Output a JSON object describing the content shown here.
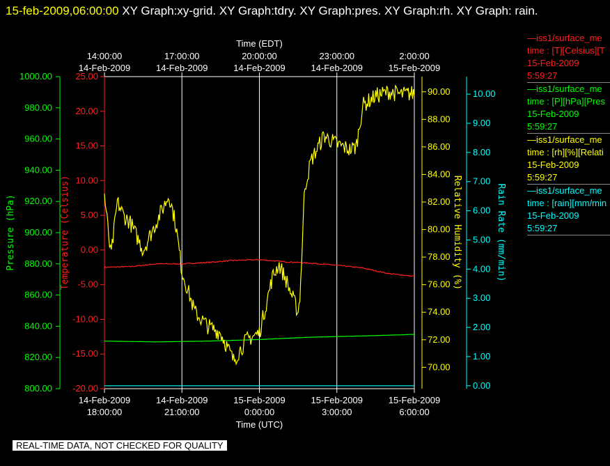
{
  "header": {
    "timestamp": "15-feb-2009,06:00:00",
    "title": "XY Graph:xy-grid.  XY Graph:tdry.  XY Graph:pres.  XY Graph:rh.  XY Graph: rain."
  },
  "footer": {
    "note": "REAL-TIME DATA, NOT CHECKED FOR QUALITY"
  },
  "legend": [
    {
      "series": "iss1/surface_me",
      "line1": "time : [T][Celsius][T",
      "line2": "15-Feb-2009",
      "line3": "5:59:27",
      "color": "#ff2020"
    },
    {
      "series": "iss1/surface_me",
      "line1": "time : [P][hPa][Pres",
      "line2": "15-Feb-2009",
      "line3": "5:59:27",
      "color": "#00ff00"
    },
    {
      "series": "iss1/surface_me",
      "line1": "time : [rh][%][Relati",
      "line2": "15-Feb-2009",
      "line3": "5:59:27",
      "color": "#ffff00"
    },
    {
      "series": "iss1/surface_me",
      "line1": "time : [rain][mm/min",
      "line2": "15-Feb-2009",
      "line3": "5:59:27",
      "color": "#00ffff"
    }
  ],
  "chart_data": {
    "type": "line",
    "grid": true,
    "top_axis": {
      "label": "Time (EDT)",
      "ticks": [
        {
          "time": "14:00:00",
          "date": "14-Feb-2009"
        },
        {
          "time": "17:00:00",
          "date": "14-Feb-2009"
        },
        {
          "time": "20:00:00",
          "date": "14-Feb-2009"
        },
        {
          "time": "23:00:00",
          "date": "14-Feb-2009"
        },
        {
          "time": "2:00:00",
          "date": "15-Feb-2009"
        }
      ]
    },
    "bottom_axis": {
      "label": "Time (UTC)",
      "xlim": [
        "2009-02-14T18:00:00Z",
        "2009-02-15T06:00:00Z"
      ],
      "ticks": [
        {
          "date": "14-Feb-2009",
          "time": "18:00:00"
        },
        {
          "date": "14-Feb-2009",
          "time": "21:00:00"
        },
        {
          "date": "15-Feb-2009",
          "time": "0:00:00"
        },
        {
          "date": "15-Feb-2009",
          "time": "3:00:00"
        },
        {
          "date": "15-Feb-2009",
          "time": "6:00:00"
        }
      ]
    },
    "axes": {
      "pressure": {
        "label": "Pressure (hPa)",
        "ylim": [
          800,
          1000
        ],
        "ticks": [
          "800.00",
          "820.00",
          "840.00",
          "860.00",
          "880.00",
          "900.00",
          "920.00",
          "940.00",
          "960.00",
          "980.00",
          "1000.00"
        ],
        "color": "#00ff00"
      },
      "temperature": {
        "label": "Temperature (Celsius)",
        "ylim": [
          -20,
          25
        ],
        "ticks": [
          "-20.00",
          "-15.00",
          "-10.00",
          "-5.00",
          "0.00",
          "5.00",
          "10.00",
          "15.00",
          "20.00",
          "25.00"
        ],
        "color": "#ff2020"
      },
      "humidity": {
        "label": "Relative Humidity (%)",
        "ylim": [
          68.45,
          91.1
        ],
        "ticks": [
          "70.00",
          "72.00",
          "74.00",
          "76.00",
          "78.00",
          "80.00",
          "82.00",
          "84.00",
          "86.00",
          "88.00",
          "90.00"
        ],
        "color": "#ffff00"
      },
      "rain": {
        "label": "Rain Rate (mm/min)",
        "ylim": [
          -0.1,
          10.6
        ],
        "ticks": [
          "0.00",
          "1.00",
          "2.00",
          "3.00",
          "4.00",
          "5.00",
          "6.00",
          "7.00",
          "8.00",
          "9.00",
          "10.00"
        ],
        "color": "#00ffff"
      }
    },
    "series": [
      {
        "name": "iss1/surface_me temperature",
        "axis": "temperature",
        "color": "#ff2020",
        "noise": 0.08,
        "x": [
          "2009-02-14T18:00:00Z",
          "2009-02-14T19:00:00Z",
          "2009-02-14T20:00:00Z",
          "2009-02-14T21:00:00Z",
          "2009-02-14T22:00:00Z",
          "2009-02-14T23:00:00Z",
          "2009-02-15T00:00:00Z",
          "2009-02-15T01:00:00Z",
          "2009-02-15T02:00:00Z",
          "2009-02-15T03:00:00Z",
          "2009-02-15T04:00:00Z",
          "2009-02-15T05:00:00Z",
          "2009-02-15T06:00:00Z"
        ],
        "y": [
          -2.5,
          -2.4,
          -2.0,
          -2.0,
          -1.8,
          -1.5,
          -1.4,
          -1.7,
          -1.9,
          -2.2,
          -2.6,
          -3.4,
          -3.8
        ]
      },
      {
        "name": "iss1/surface_me pressure",
        "axis": "pressure",
        "color": "#00ff00",
        "noise": 0.05,
        "x": [
          "2009-02-14T18:00:00Z",
          "2009-02-14T20:00:00Z",
          "2009-02-14T22:00:00Z",
          "2009-02-15T00:00:00Z",
          "2009-02-15T02:00:00Z",
          "2009-02-15T04:00:00Z",
          "2009-02-15T06:00:00Z"
        ],
        "y": [
          830.5,
          830.0,
          830.5,
          831.5,
          833.0,
          833.8,
          834.8
        ]
      },
      {
        "name": "iss1/surface_me rh",
        "axis": "humidity",
        "color": "#ffff00",
        "noise": 0.6,
        "x": [
          "2009-02-14T18:00:00Z",
          "2009-02-14T18:15:00Z",
          "2009-02-14T18:30:00Z",
          "2009-02-14T18:45:00Z",
          "2009-02-14T19:00:00Z",
          "2009-02-14T19:30:00Z",
          "2009-02-14T20:00:00Z",
          "2009-02-14T20:30:00Z",
          "2009-02-14T20:45:00Z",
          "2009-02-14T21:00:00Z",
          "2009-02-14T21:30:00Z",
          "2009-02-14T22:00:00Z",
          "2009-02-14T22:30:00Z",
          "2009-02-14T23:00:00Z",
          "2009-02-14T23:30:00Z",
          "2009-02-15T00:00:00Z",
          "2009-02-15T00:30:00Z",
          "2009-02-15T00:45:00Z",
          "2009-02-15T01:00:00Z",
          "2009-02-15T01:30:00Z",
          "2009-02-15T01:35:00Z",
          "2009-02-15T01:45:00Z",
          "2009-02-15T02:00:00Z",
          "2009-02-15T02:30:00Z",
          "2009-02-15T03:00:00Z",
          "2009-02-15T03:30:00Z",
          "2009-02-15T03:45:00Z",
          "2009-02-15T04:00:00Z",
          "2009-02-15T04:30:00Z",
          "2009-02-15T05:00:00Z",
          "2009-02-15T05:30:00Z",
          "2009-02-15T06:00:00Z"
        ],
        "y": [
          82.5,
          78.0,
          82.0,
          81.0,
          80.5,
          78.5,
          80.5,
          82.5,
          80.5,
          77.0,
          74.0,
          73.0,
          72.5,
          70.5,
          72.0,
          72.5,
          76.5,
          77.5,
          76.5,
          74.0,
          75.5,
          83.0,
          85.0,
          86.8,
          86.2,
          85.8,
          86.0,
          89.0,
          89.7,
          90.0,
          89.8,
          89.9
        ]
      },
      {
        "name": "iss1/surface_me rain",
        "axis": "rain",
        "color": "#00ffff",
        "noise": 0,
        "x": [
          "2009-02-14T18:00:00Z",
          "2009-02-15T06:00:00Z"
        ],
        "y": [
          0.0,
          0.0
        ]
      }
    ]
  }
}
